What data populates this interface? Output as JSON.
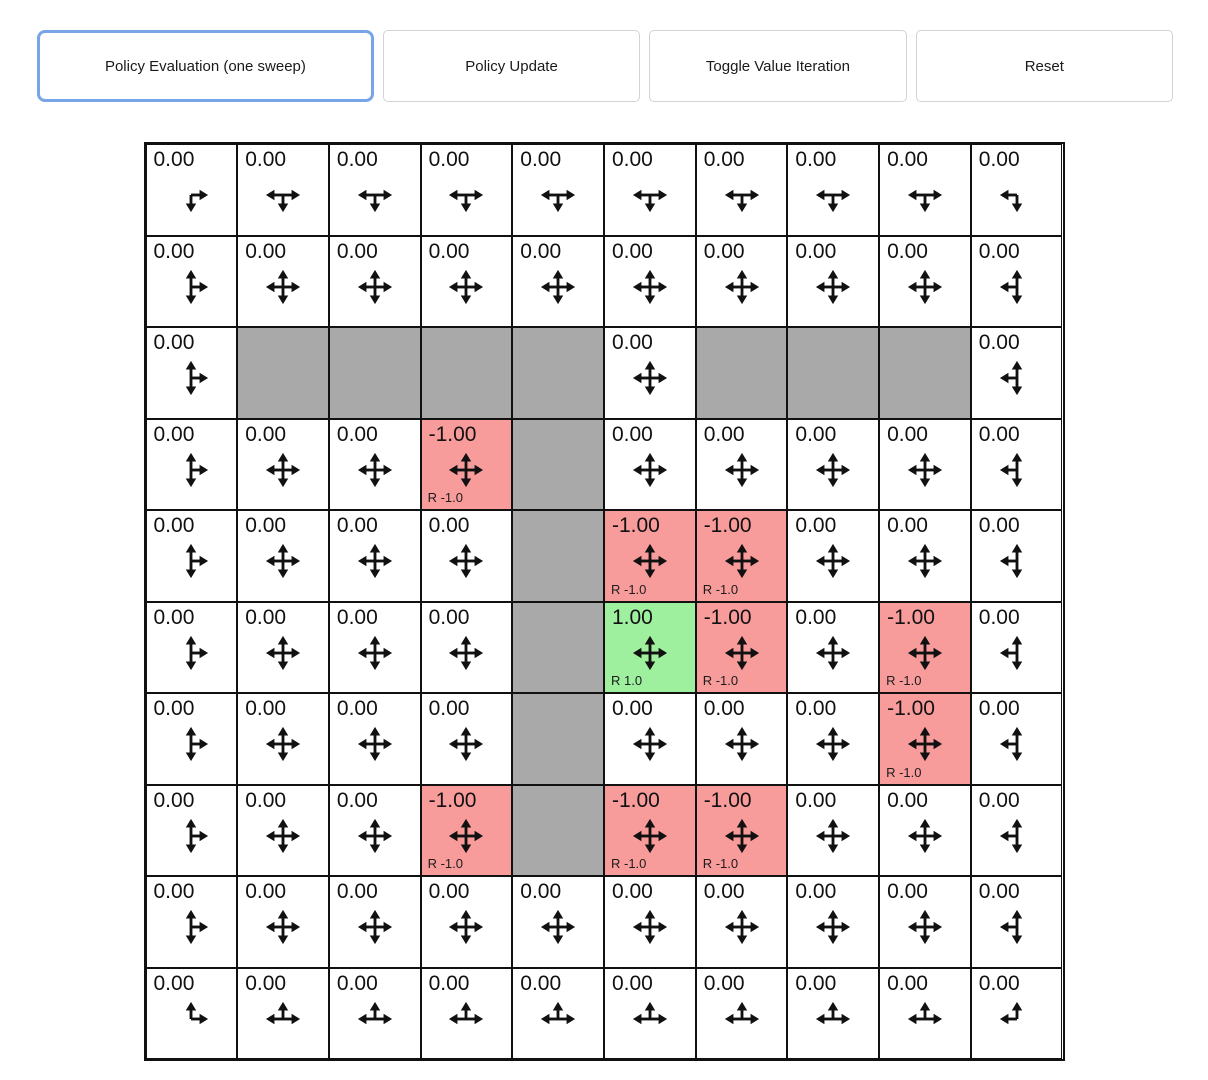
{
  "toolbar": {
    "buttons": [
      {
        "name": "policy-evaluation-button",
        "label": "Policy Evaluation (one sweep)",
        "active": true
      },
      {
        "name": "policy-update-button",
        "label": "Policy Update",
        "active": false
      },
      {
        "name": "toggle-value-iteration-button",
        "label": "Toggle Value Iteration",
        "active": false
      },
      {
        "name": "reset-button",
        "label": "Reset",
        "active": false
      }
    ]
  },
  "colors": {
    "accent": "#78a4e8",
    "wall": "#a9a9a9",
    "negative_cell": "#f89b9b",
    "positive_cell": "#9ef09e",
    "grid_border": "#111111"
  },
  "grid": {
    "rows_count": 10,
    "cols_count": 10,
    "rows": [
      [
        {
          "value": "0.00",
          "arrows": "dr",
          "type": "open"
        },
        {
          "value": "0.00",
          "arrows": "dlr",
          "type": "open"
        },
        {
          "value": "0.00",
          "arrows": "dlr",
          "type": "open"
        },
        {
          "value": "0.00",
          "arrows": "dlr",
          "type": "open"
        },
        {
          "value": "0.00",
          "arrows": "dlr",
          "type": "open"
        },
        {
          "value": "0.00",
          "arrows": "dlr",
          "type": "open"
        },
        {
          "value": "0.00",
          "arrows": "dlr",
          "type": "open"
        },
        {
          "value": "0.00",
          "arrows": "dlr",
          "type": "open"
        },
        {
          "value": "0.00",
          "arrows": "dlr",
          "type": "open"
        },
        {
          "value": "0.00",
          "arrows": "dl",
          "type": "open"
        }
      ],
      [
        {
          "value": "0.00",
          "arrows": "udr",
          "type": "open"
        },
        {
          "value": "0.00",
          "arrows": "udlr",
          "type": "open"
        },
        {
          "value": "0.00",
          "arrows": "udlr",
          "type": "open"
        },
        {
          "value": "0.00",
          "arrows": "udlr",
          "type": "open"
        },
        {
          "value": "0.00",
          "arrows": "udlr",
          "type": "open"
        },
        {
          "value": "0.00",
          "arrows": "udlr",
          "type": "open"
        },
        {
          "value": "0.00",
          "arrows": "udlr",
          "type": "open"
        },
        {
          "value": "0.00",
          "arrows": "udlr",
          "type": "open"
        },
        {
          "value": "0.00",
          "arrows": "udlr",
          "type": "open"
        },
        {
          "value": "0.00",
          "arrows": "udl",
          "type": "open"
        }
      ],
      [
        {
          "value": "0.00",
          "arrows": "udr",
          "type": "open"
        },
        {
          "type": "wall"
        },
        {
          "type": "wall"
        },
        {
          "type": "wall"
        },
        {
          "type": "wall"
        },
        {
          "value": "0.00",
          "arrows": "udlr",
          "type": "open"
        },
        {
          "type": "wall"
        },
        {
          "type": "wall"
        },
        {
          "type": "wall"
        },
        {
          "value": "0.00",
          "arrows": "udl",
          "type": "open"
        }
      ],
      [
        {
          "value": "0.00",
          "arrows": "udr",
          "type": "open"
        },
        {
          "value": "0.00",
          "arrows": "udlr",
          "type": "open"
        },
        {
          "value": "0.00",
          "arrows": "udlr",
          "type": "open"
        },
        {
          "value": "-1.00",
          "arrows": "udlr",
          "type": "neg",
          "reward": "R -1.0"
        },
        {
          "type": "wall"
        },
        {
          "value": "0.00",
          "arrows": "udlr",
          "type": "open"
        },
        {
          "value": "0.00",
          "arrows": "udlr",
          "type": "open"
        },
        {
          "value": "0.00",
          "arrows": "udlr",
          "type": "open"
        },
        {
          "value": "0.00",
          "arrows": "udlr",
          "type": "open"
        },
        {
          "value": "0.00",
          "arrows": "udl",
          "type": "open"
        }
      ],
      [
        {
          "value": "0.00",
          "arrows": "udr",
          "type": "open"
        },
        {
          "value": "0.00",
          "arrows": "udlr",
          "type": "open"
        },
        {
          "value": "0.00",
          "arrows": "udlr",
          "type": "open"
        },
        {
          "value": "0.00",
          "arrows": "udlr",
          "type": "open"
        },
        {
          "type": "wall"
        },
        {
          "value": "-1.00",
          "arrows": "udlr",
          "type": "neg",
          "reward": "R -1.0"
        },
        {
          "value": "-1.00",
          "arrows": "udlr",
          "type": "neg",
          "reward": "R -1.0"
        },
        {
          "value": "0.00",
          "arrows": "udlr",
          "type": "open"
        },
        {
          "value": "0.00",
          "arrows": "udlr",
          "type": "open"
        },
        {
          "value": "0.00",
          "arrows": "udl",
          "type": "open"
        }
      ],
      [
        {
          "value": "0.00",
          "arrows": "udr",
          "type": "open"
        },
        {
          "value": "0.00",
          "arrows": "udlr",
          "type": "open"
        },
        {
          "value": "0.00",
          "arrows": "udlr",
          "type": "open"
        },
        {
          "value": "0.00",
          "arrows": "udlr",
          "type": "open"
        },
        {
          "type": "wall"
        },
        {
          "value": "1.00",
          "arrows": "udlr",
          "type": "pos",
          "reward": "R 1.0"
        },
        {
          "value": "-1.00",
          "arrows": "udlr",
          "type": "neg",
          "reward": "R -1.0"
        },
        {
          "value": "0.00",
          "arrows": "udlr",
          "type": "open"
        },
        {
          "value": "-1.00",
          "arrows": "udlr",
          "type": "neg",
          "reward": "R -1.0"
        },
        {
          "value": "0.00",
          "arrows": "udl",
          "type": "open"
        }
      ],
      [
        {
          "value": "0.00",
          "arrows": "udr",
          "type": "open"
        },
        {
          "value": "0.00",
          "arrows": "udlr",
          "type": "open"
        },
        {
          "value": "0.00",
          "arrows": "udlr",
          "type": "open"
        },
        {
          "value": "0.00",
          "arrows": "udlr",
          "type": "open"
        },
        {
          "type": "wall"
        },
        {
          "value": "0.00",
          "arrows": "udlr",
          "type": "open"
        },
        {
          "value": "0.00",
          "arrows": "udlr",
          "type": "open"
        },
        {
          "value": "0.00",
          "arrows": "udlr",
          "type": "open"
        },
        {
          "value": "-1.00",
          "arrows": "udlr",
          "type": "neg",
          "reward": "R -1.0"
        },
        {
          "value": "0.00",
          "arrows": "udl",
          "type": "open"
        }
      ],
      [
        {
          "value": "0.00",
          "arrows": "udr",
          "type": "open"
        },
        {
          "value": "0.00",
          "arrows": "udlr",
          "type": "open"
        },
        {
          "value": "0.00",
          "arrows": "udlr",
          "type": "open"
        },
        {
          "value": "-1.00",
          "arrows": "udlr",
          "type": "neg",
          "reward": "R -1.0"
        },
        {
          "type": "wall"
        },
        {
          "value": "-1.00",
          "arrows": "udlr",
          "type": "neg",
          "reward": "R -1.0"
        },
        {
          "value": "-1.00",
          "arrows": "udlr",
          "type": "neg",
          "reward": "R -1.0"
        },
        {
          "value": "0.00",
          "arrows": "udlr",
          "type": "open"
        },
        {
          "value": "0.00",
          "arrows": "udlr",
          "type": "open"
        },
        {
          "value": "0.00",
          "arrows": "udl",
          "type": "open"
        }
      ],
      [
        {
          "value": "0.00",
          "arrows": "udr",
          "type": "open"
        },
        {
          "value": "0.00",
          "arrows": "udlr",
          "type": "open"
        },
        {
          "value": "0.00",
          "arrows": "udlr",
          "type": "open"
        },
        {
          "value": "0.00",
          "arrows": "udlr",
          "type": "open"
        },
        {
          "value": "0.00",
          "arrows": "udlr",
          "type": "open"
        },
        {
          "value": "0.00",
          "arrows": "udlr",
          "type": "open"
        },
        {
          "value": "0.00",
          "arrows": "udlr",
          "type": "open"
        },
        {
          "value": "0.00",
          "arrows": "udlr",
          "type": "open"
        },
        {
          "value": "0.00",
          "arrows": "udlr",
          "type": "open"
        },
        {
          "value": "0.00",
          "arrows": "udl",
          "type": "open"
        }
      ],
      [
        {
          "value": "0.00",
          "arrows": "ur",
          "type": "open"
        },
        {
          "value": "0.00",
          "arrows": "ulr",
          "type": "open"
        },
        {
          "value": "0.00",
          "arrows": "ulr",
          "type": "open"
        },
        {
          "value": "0.00",
          "arrows": "ulr",
          "type": "open"
        },
        {
          "value": "0.00",
          "arrows": "ulr",
          "type": "open"
        },
        {
          "value": "0.00",
          "arrows": "ulr",
          "type": "open"
        },
        {
          "value": "0.00",
          "arrows": "ulr",
          "type": "open"
        },
        {
          "value": "0.00",
          "arrows": "ulr",
          "type": "open"
        },
        {
          "value": "0.00",
          "arrows": "ulr",
          "type": "open"
        },
        {
          "value": "0.00",
          "arrows": "ul",
          "type": "open"
        }
      ]
    ]
  }
}
